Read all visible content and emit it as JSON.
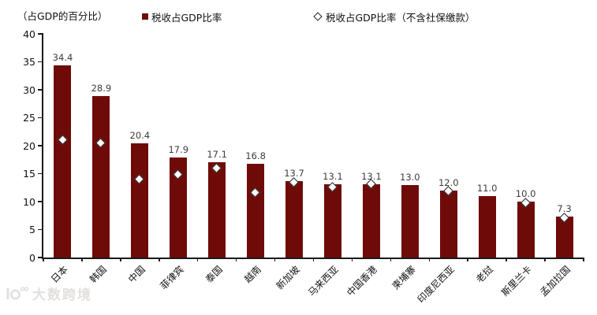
{
  "watermark": {
    "text": "大数跨境"
  },
  "colors": {
    "bar": "#6e0b08",
    "diamond_fill": "#ffffff",
    "diamond_border": "#1f1f1f",
    "axis": "#1a1a1a",
    "watermark": "#e2dfdc"
  },
  "chart_data": {
    "type": "bar",
    "ylabel": "（占GDP的百分比）",
    "categories": [
      "日本",
      "韩国",
      "中国",
      "菲律宾",
      "泰国",
      "越南",
      "新加坡",
      "马来西亚",
      "中国香港",
      "柬埔寨",
      "印度尼西亚",
      "老挝",
      "斯里兰卡",
      "孟加拉国"
    ],
    "series": [
      {
        "name": "税收占GDP比率",
        "type": "bar",
        "color": "#6e0b08",
        "values": [
          34.4,
          28.9,
          20.4,
          17.9,
          17.1,
          16.8,
          13.7,
          13.1,
          13.1,
          13.0,
          12.0,
          11.0,
          10.0,
          7.3
        ],
        "value_labels_shown": true
      },
      {
        "name": "税收占GDP比率（不含社保缴款）",
        "type": "scatter",
        "marker": "open-diamond",
        "values": [
          21.0,
          20.4,
          13.9,
          14.8,
          15.9,
          11.5,
          13.4,
          12.5,
          13.1,
          null,
          11.8,
          null,
          9.8,
          7.1
        ]
      }
    ],
    "ylim": [
      0,
      40
    ],
    "yticks": [
      0,
      5,
      10,
      15,
      20,
      25,
      30,
      35,
      40
    ],
    "grid": false,
    "legend_position": "top",
    "x_label_rotation_deg": 45
  }
}
